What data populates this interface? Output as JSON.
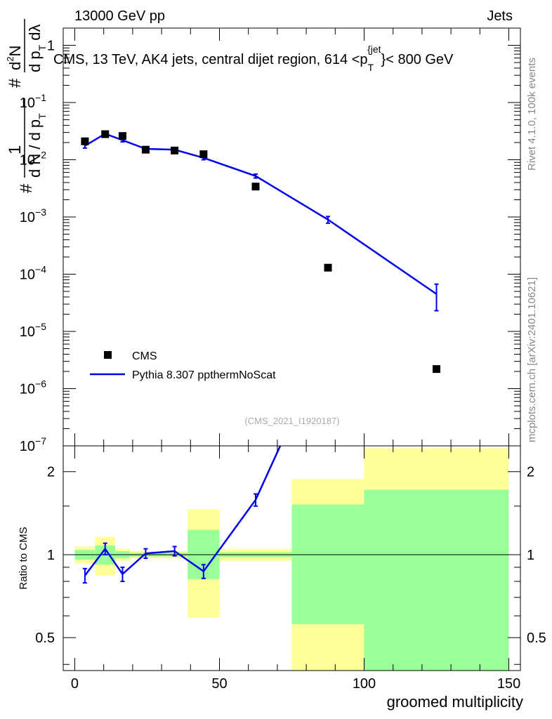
{
  "header": {
    "left": "13000 GeV pp",
    "right": "Jets"
  },
  "side_labels": {
    "rivet": "Rivet 4.1.0,  100k events",
    "mcplots": "mcplots.cern.ch [arXiv:2401.10621]"
  },
  "chart_data": [
    {
      "type": "scatter",
      "title": "CMS, 13 TeV, AK4 jets, central dijet region, 614 <p_T^{jet}< 800 GeV",
      "title_parts": {
        "main": "CMS, 13 TeV, AK4 jets, central dijet region, 614 <p",
        "sub": "T",
        "sup": "{jet",
        "tail": "}< 800 GeV"
      },
      "ylabel": "1/dN/dp_T # d^2N/dp_T dλ",
      "ylabel_parts": {
        "num1": "1",
        "den1": "d N / d p",
        "den1_sub": "T",
        "num2": "d",
        "num2_sup": "2",
        "num2_tail": "N",
        "den2": "d p",
        "den2_sub": "T",
        "den2_tail": " dλ",
        "hash": "#"
      },
      "yscale": "log",
      "ylim": [
        1e-07,
        2
      ],
      "yticks": [
        {
          "v": 1e-07,
          "base": "10",
          "exp": "−7"
        },
        {
          "v": 1e-06,
          "base": "10",
          "exp": "−6"
        },
        {
          "v": 1e-05,
          "base": "10",
          "exp": "−5"
        },
        {
          "v": 0.0001,
          "base": "10",
          "exp": "−4"
        },
        {
          "v": 0.001,
          "base": "10",
          "exp": "−3"
        },
        {
          "v": 0.01,
          "base": "10",
          "exp": "−2"
        },
        {
          "v": 0.1,
          "base": "10",
          "exp": "−1"
        },
        {
          "v": 1,
          "base": "1",
          "exp": ""
        }
      ],
      "xlim": [
        -4,
        154
      ],
      "watermark": "(CMS_2021_I1920187)",
      "legend": {
        "position": "bottom-left",
        "entries": [
          "CMS",
          "Pythia 8.307 ppthermNoScat"
        ]
      },
      "series": [
        {
          "name": "CMS",
          "marker": "square",
          "color": "#000000",
          "x": [
            3.5,
            10.5,
            16.5,
            24.5,
            34.5,
            44.5,
            62.5,
            87.5,
            125
          ],
          "y": [
            0.021,
            0.028,
            0.026,
            0.015,
            0.0145,
            0.0125,
            0.0034,
            0.00013,
            2.2e-06
          ]
        },
        {
          "name": "Pythia 8.307 ppthermNoScat",
          "marker": "line",
          "color": "#0000ee",
          "x": [
            3.5,
            10.5,
            16.5,
            24.5,
            34.5,
            44.5,
            62.5,
            87.5,
            125
          ],
          "y": [
            0.0175,
            0.0285,
            0.022,
            0.0155,
            0.015,
            0.0108,
            0.0052,
            0.0009,
            4.5e-05
          ],
          "yerr_low": [
            0.0015,
            0.0015,
            0.0015,
            0.0008,
            0.0008,
            0.0008,
            0.0004,
            0.00012,
            2.2e-05
          ],
          "yerr_high": [
            0.0015,
            0.0015,
            0.0015,
            0.0008,
            0.0008,
            0.0008,
            0.0004,
            0.00012,
            2.2e-05
          ]
        }
      ]
    },
    {
      "type": "line",
      "ylabel": "Ratio to CMS",
      "xlabel": "groomed multiplicity",
      "yscale": "log",
      "ylim": [
        0.38,
        2.48
      ],
      "xlim": [
        -4,
        154
      ],
      "yticks": [
        0.5,
        1,
        2
      ],
      "xticks": [
        0,
        50,
        100,
        150
      ],
      "reference_line": 1,
      "bands": [
        {
          "x0": 0,
          "x1": 7,
          "yellow": [
            0.93,
            1.07
          ],
          "green": [
            0.96,
            1.04
          ]
        },
        {
          "x0": 7,
          "x1": 14,
          "yellow": [
            0.84,
            1.16
          ],
          "green": [
            0.92,
            1.08
          ]
        },
        {
          "x0": 14,
          "x1": 19,
          "yellow": [
            0.95,
            1.05
          ],
          "green": [
            0.97,
            1.03
          ]
        },
        {
          "x0": 19,
          "x1": 39,
          "yellow": [
            0.97,
            1.03
          ],
          "green": [
            0.985,
            1.015
          ]
        },
        {
          "x0": 39,
          "x1": 50,
          "yellow": [
            0.59,
            1.46
          ],
          "green": [
            0.815,
            1.23
          ]
        },
        {
          "x0": 50,
          "x1": 75,
          "yellow": [
            0.95,
            1.05
          ],
          "green": [
            0.98,
            1.02
          ]
        },
        {
          "x0": 75,
          "x1": 100,
          "yellow": [
            0.38,
            1.88
          ],
          "green": [
            0.56,
            1.52
          ]
        },
        {
          "x0": 100,
          "x1": 150,
          "yellow": [
            0.38,
            2.43
          ],
          "green": [
            0.38,
            1.72
          ]
        }
      ],
      "series": [
        {
          "name": "Pythia 8.307 ppthermNoScat",
          "color": "#0000ee",
          "x": [
            3.5,
            10.5,
            16.5,
            24.5,
            34.5,
            44.5,
            62.5,
            71
          ],
          "y": [
            0.84,
            1.05,
            0.85,
            1.01,
            1.03,
            0.87,
            1.58,
            2.48
          ],
          "yerr_low": [
            0.05,
            0.05,
            0.05,
            0.04,
            0.04,
            0.05,
            0.08,
            0
          ],
          "yerr_high": [
            0.05,
            0.05,
            0.05,
            0.04,
            0.04,
            0.05,
            0.08,
            0
          ],
          "bars": [
            true,
            true,
            true,
            true,
            true,
            true,
            true,
            false
          ]
        }
      ]
    }
  ]
}
